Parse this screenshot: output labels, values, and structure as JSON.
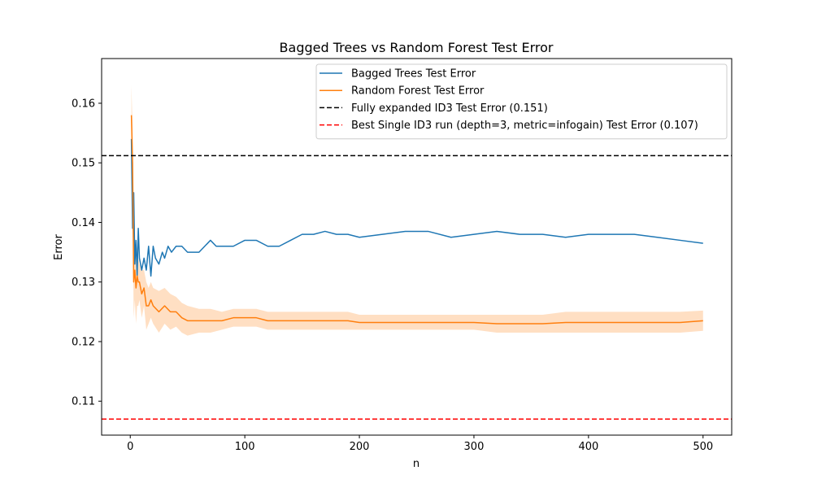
{
  "chart_data": {
    "type": "line",
    "title": "Bagged Trees vs Random Forest Test Error",
    "xlabel": "n",
    "ylabel": "Error",
    "xlim": [
      -25,
      525
    ],
    "ylim": [
      0.1043,
      0.1675
    ],
    "x_ticks": [
      0,
      100,
      200,
      300,
      400,
      500
    ],
    "y_ticks": [
      0.11,
      0.12,
      0.13,
      0.14,
      0.15,
      0.16
    ],
    "x_tick_labels": [
      "0",
      "100",
      "200",
      "300",
      "400",
      "500"
    ],
    "y_tick_labels": [
      "0.11",
      "0.12",
      "0.13",
      "0.14",
      "0.15",
      "0.16"
    ],
    "grid": false,
    "legend_position": "top-right",
    "series": [
      {
        "name": "Bagged Trees Test Error",
        "color": "#1f77b4",
        "style": "solid",
        "x": [
          1,
          2,
          3,
          4,
          5,
          6,
          7,
          8,
          10,
          12,
          14,
          16,
          18,
          20,
          22,
          25,
          28,
          30,
          33,
          36,
          40,
          45,
          50,
          55,
          60,
          65,
          70,
          75,
          80,
          90,
          100,
          110,
          120,
          130,
          140,
          150,
          160,
          170,
          180,
          190,
          200,
          220,
          240,
          260,
          280,
          300,
          320,
          340,
          360,
          380,
          400,
          420,
          440,
          460,
          480,
          500
        ],
        "y": [
          0.154,
          0.139,
          0.145,
          0.133,
          0.137,
          0.131,
          0.139,
          0.134,
          0.132,
          0.134,
          0.132,
          0.136,
          0.131,
          0.136,
          0.134,
          0.133,
          0.135,
          0.134,
          0.136,
          0.135,
          0.136,
          0.136,
          0.135,
          0.135,
          0.135,
          0.136,
          0.137,
          0.136,
          0.136,
          0.136,
          0.137,
          0.137,
          0.136,
          0.136,
          0.137,
          0.138,
          0.138,
          0.1385,
          0.138,
          0.138,
          0.1375,
          0.138,
          0.1385,
          0.1385,
          0.1375,
          0.138,
          0.1385,
          0.138,
          0.138,
          0.1375,
          0.138,
          0.138,
          0.138,
          0.1375,
          0.137,
          0.1365
        ]
      },
      {
        "name": "Random Forest Test Error",
        "color": "#ff7f0e",
        "style": "solid",
        "x": [
          1,
          2,
          3,
          4,
          5,
          6,
          7,
          8,
          10,
          12,
          14,
          16,
          18,
          20,
          25,
          30,
          35,
          40,
          45,
          50,
          60,
          70,
          80,
          90,
          100,
          110,
          120,
          130,
          140,
          150,
          160,
          170,
          180,
          190,
          200,
          220,
          240,
          260,
          280,
          300,
          320,
          340,
          360,
          380,
          400,
          420,
          440,
          460,
          480,
          500
        ],
        "y": [
          0.158,
          0.15,
          0.13,
          0.132,
          0.129,
          0.131,
          0.13,
          0.13,
          0.128,
          0.129,
          0.126,
          0.126,
          0.127,
          0.126,
          0.125,
          0.126,
          0.125,
          0.125,
          0.124,
          0.1235,
          0.1235,
          0.1235,
          0.1235,
          0.124,
          0.124,
          0.124,
          0.1235,
          0.1235,
          0.1235,
          0.1235,
          0.1235,
          0.1235,
          0.1235,
          0.1235,
          0.1232,
          0.1232,
          0.1232,
          0.1232,
          0.1232,
          0.1232,
          0.123,
          0.123,
          0.123,
          0.1232,
          0.1232,
          0.1232,
          0.1232,
          0.1232,
          0.1232,
          0.1235
        ],
        "band_upper": [
          0.163,
          0.156,
          0.139,
          0.137,
          0.135,
          0.136,
          0.134,
          0.133,
          0.132,
          0.132,
          0.13,
          0.129,
          0.13,
          0.129,
          0.1285,
          0.129,
          0.128,
          0.1275,
          0.1265,
          0.126,
          0.1255,
          0.1255,
          0.125,
          0.1255,
          0.1255,
          0.1255,
          0.125,
          0.125,
          0.125,
          0.125,
          0.125,
          0.125,
          0.125,
          0.125,
          0.1245,
          0.1245,
          0.1245,
          0.1245,
          0.1245,
          0.1245,
          0.1245,
          0.1245,
          0.1245,
          0.125,
          0.125,
          0.125,
          0.125,
          0.125,
          0.125,
          0.1252
        ],
        "band_lower": [
          0.153,
          0.144,
          0.124,
          0.127,
          0.123,
          0.126,
          0.126,
          0.127,
          0.124,
          0.126,
          0.122,
          0.123,
          0.124,
          0.123,
          0.1215,
          0.123,
          0.122,
          0.1225,
          0.1215,
          0.121,
          0.1215,
          0.1215,
          0.122,
          0.1225,
          0.1225,
          0.1225,
          0.122,
          0.122,
          0.122,
          0.122,
          0.122,
          0.122,
          0.122,
          0.122,
          0.122,
          0.122,
          0.122,
          0.122,
          0.122,
          0.122,
          0.1215,
          0.1215,
          0.1215,
          0.1215,
          0.1215,
          0.1215,
          0.1215,
          0.1215,
          0.1215,
          0.1218
        ]
      }
    ],
    "reference_lines": [
      {
        "name": "Fully expanded ID3 Test Error (0.151)",
        "y": 0.1512,
        "color": "#000000",
        "style": "dashed"
      },
      {
        "name": "Best Single ID3 run (depth=3, metric=infogain) Test Error (0.107)",
        "y": 0.107,
        "color": "#ff0000",
        "style": "dashed"
      }
    ]
  }
}
